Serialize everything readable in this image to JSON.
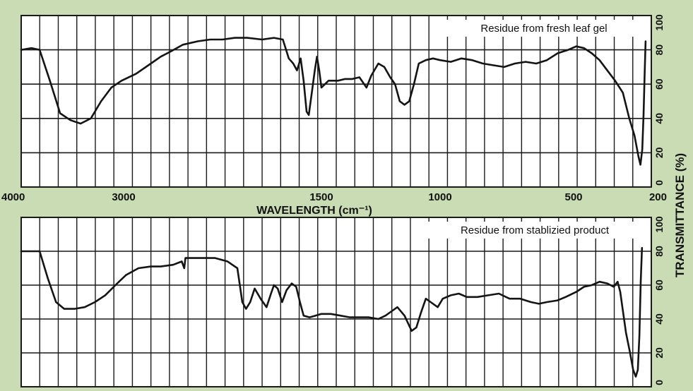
{
  "colors": {
    "background": "#c9dcb4",
    "plot_area": "#ffffff",
    "grid": "#1a1a1a",
    "line": "#141414",
    "text": "#111111"
  },
  "chart_data": [
    {
      "type": "line",
      "title": "Residue from fresh leaf gel",
      "xlabel": "WAVELENGTH (cm⁻¹)",
      "ylabel": "TRANSMITTANCE (%)",
      "x_ticks": [
        "4000",
        "3000",
        "1500",
        "1000",
        "500",
        "200"
      ],
      "y_ticks": [
        "0",
        "20",
        "40",
        "60",
        "80",
        "100"
      ],
      "ylim": [
        0,
        100
      ],
      "grid": true,
      "series": [
        {
          "points": [
            [
              4000,
              80
            ],
            [
              3900,
              81
            ],
            [
              3820,
              80
            ],
            [
              3720,
              62
            ],
            [
              3620,
              43
            ],
            [
              3520,
              39
            ],
            [
              3420,
              37
            ],
            [
              3320,
              40
            ],
            [
              3220,
              50
            ],
            [
              3120,
              58
            ],
            [
              3020,
              62
            ],
            [
              2900,
              66
            ],
            [
              2800,
              71
            ],
            [
              2700,
              76
            ],
            [
              2620,
              79
            ],
            [
              2520,
              83
            ],
            [
              2400,
              85
            ],
            [
              2300,
              86
            ],
            [
              2200,
              86
            ],
            [
              2100,
              87
            ],
            [
              2000,
              87
            ],
            [
              1900,
              86
            ],
            [
              1820,
              87
            ],
            [
              1760,
              86
            ],
            [
              1720,
              75
            ],
            [
              1690,
              72
            ],
            [
              1665,
              68
            ],
            [
              1640,
              75
            ],
            [
              1620,
              62
            ],
            [
              1600,
              44
            ],
            [
              1585,
              42
            ],
            [
              1565,
              55
            ],
            [
              1545,
              68
            ],
            [
              1530,
              76
            ],
            [
              1515,
              68
            ],
            [
              1500,
              58
            ],
            [
              1470,
              62
            ],
            [
              1430,
              62
            ],
            [
              1400,
              63
            ],
            [
              1370,
              63
            ],
            [
              1340,
              64
            ],
            [
              1310,
              58
            ],
            [
              1290,
              65
            ],
            [
              1260,
              72
            ],
            [
              1235,
              70
            ],
            [
              1210,
              64
            ],
            [
              1190,
              60
            ],
            [
              1170,
              50
            ],
            [
              1150,
              48
            ],
            [
              1130,
              50
            ],
            [
              1110,
              60
            ],
            [
              1090,
              72
            ],
            [
              1060,
              74
            ],
            [
              1030,
              75
            ],
            [
              1000,
              74
            ],
            [
              960,
              73
            ],
            [
              920,
              75
            ],
            [
              880,
              74
            ],
            [
              840,
              72
            ],
            [
              800,
              71
            ],
            [
              760,
              70
            ],
            [
              720,
              72
            ],
            [
              680,
              73
            ],
            [
              640,
              72
            ],
            [
              600,
              74
            ],
            [
              560,
              78
            ],
            [
              520,
              80
            ],
            [
              490,
              82
            ],
            [
              460,
              81
            ],
            [
              430,
              78
            ],
            [
              400,
              74
            ],
            [
              370,
              68
            ],
            [
              340,
              62
            ],
            [
              310,
              55
            ],
            [
              285,
              40
            ],
            [
              265,
              30
            ],
            [
              250,
              18
            ],
            [
              242,
              13
            ],
            [
              235,
              22
            ],
            [
              230,
              42
            ],
            [
              226,
              65
            ],
            [
              222,
              85
            ]
          ]
        }
      ]
    },
    {
      "type": "line",
      "title": "Residue from stablizied product",
      "xlabel": "WAVELENGTH (cm⁻¹)",
      "ylabel": "TRANSMITTANCE (%)",
      "ylim": [
        0,
        100
      ],
      "grid": true,
      "series": [
        {
          "points": [
            [
              4000,
              80
            ],
            [
              3900,
              80
            ],
            [
              3820,
              80
            ],
            [
              3740,
              64
            ],
            [
              3660,
              50
            ],
            [
              3580,
              46
            ],
            [
              3480,
              46
            ],
            [
              3380,
              47
            ],
            [
              3280,
              50
            ],
            [
              3180,
              54
            ],
            [
              3080,
              60
            ],
            [
              2980,
              66
            ],
            [
              2880,
              70
            ],
            [
              2780,
              71
            ],
            [
              2700,
              71
            ],
            [
              2600,
              72
            ],
            [
              2530,
              74
            ],
            [
              2510,
              70
            ],
            [
              2500,
              76
            ],
            [
              2380,
              76
            ],
            [
              2260,
              76
            ],
            [
              2160,
              74
            ],
            [
              2080,
              70
            ],
            [
              2040,
              50
            ],
            [
              2010,
              46
            ],
            [
              1980,
              50
            ],
            [
              1950,
              58
            ],
            [
              1910,
              52
            ],
            [
              1870,
              47
            ],
            [
              1840,
              55
            ],
            [
              1820,
              60
            ],
            [
              1795,
              58
            ],
            [
              1765,
              50
            ],
            [
              1735,
              57
            ],
            [
              1700,
              61
            ],
            [
              1670,
              59
            ],
            [
              1645,
              50
            ],
            [
              1620,
              42
            ],
            [
              1580,
              41
            ],
            [
              1540,
              42
            ],
            [
              1500,
              43
            ],
            [
              1460,
              43
            ],
            [
              1420,
              42
            ],
            [
              1380,
              41
            ],
            [
              1340,
              41
            ],
            [
              1300,
              41
            ],
            [
              1260,
              40
            ],
            [
              1230,
              42
            ],
            [
              1200,
              45
            ],
            [
              1180,
              47
            ],
            [
              1150,
              42
            ],
            [
              1120,
              33
            ],
            [
              1100,
              35
            ],
            [
              1080,
              44
            ],
            [
              1060,
              52
            ],
            [
              1040,
              50
            ],
            [
              1010,
              47
            ],
            [
              990,
              52
            ],
            [
              960,
              54
            ],
            [
              930,
              55
            ],
            [
              900,
              53
            ],
            [
              860,
              53
            ],
            [
              820,
              54
            ],
            [
              780,
              55
            ],
            [
              740,
              52
            ],
            [
              700,
              52
            ],
            [
              660,
              50
            ],
            [
              630,
              49
            ],
            [
              600,
              50
            ],
            [
              560,
              51
            ],
            [
              530,
              53
            ],
            [
              490,
              56
            ],
            [
              460,
              59
            ],
            [
              430,
              60
            ],
            [
              400,
              62
            ],
            [
              370,
              61
            ],
            [
              345,
              59
            ],
            [
              330,
              62
            ],
            [
              320,
              56
            ],
            [
              310,
              45
            ],
            [
              298,
              32
            ],
            [
              282,
              20
            ],
            [
              270,
              10
            ],
            [
              260,
              6
            ],
            [
              252,
              10
            ],
            [
              246,
              30
            ],
            [
              241,
              62
            ],
            [
              236,
              82
            ]
          ]
        }
      ]
    }
  ]
}
